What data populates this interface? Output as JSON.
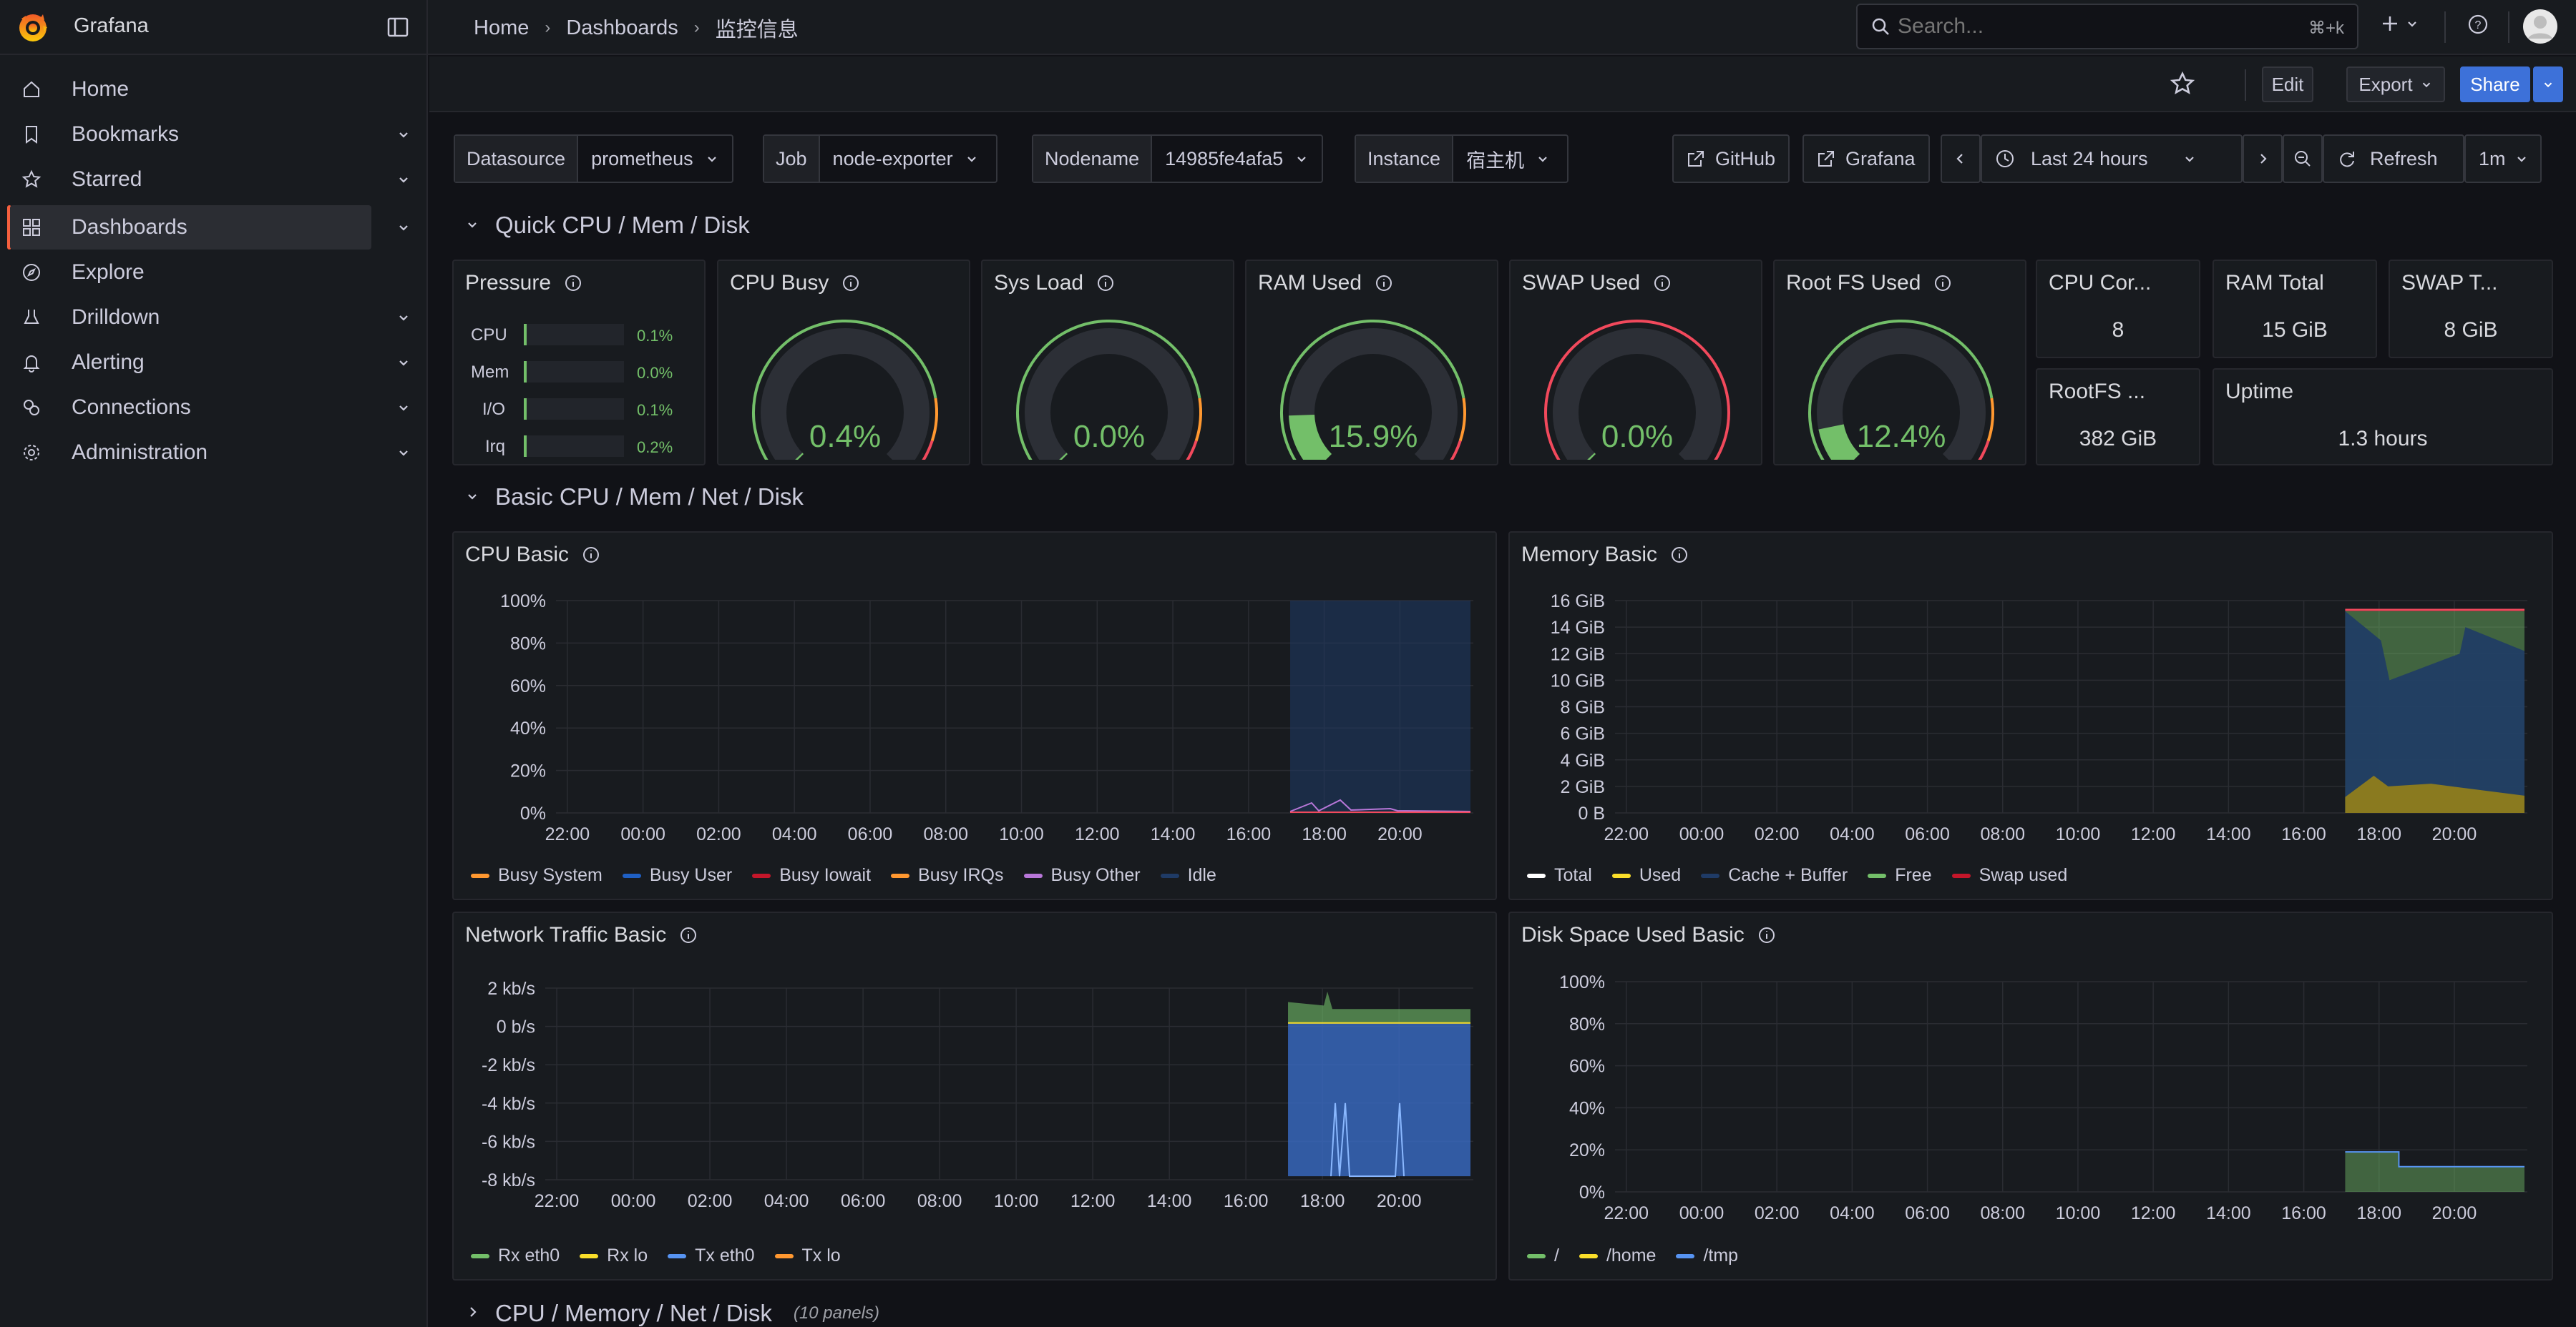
{
  "app": {
    "name": "Grafana"
  },
  "breadcrumb": [
    "Home",
    "Dashboards",
    "监控信息"
  ],
  "search": {
    "placeholder": "Search...",
    "shortcut": "⌘+k"
  },
  "sidebar": {
    "items": [
      {
        "label": "Home",
        "icon": "home-icon",
        "chev": false
      },
      {
        "label": "Bookmarks",
        "icon": "bookmark-icon",
        "chev": true
      },
      {
        "label": "Starred",
        "icon": "star-icon",
        "chev": true
      },
      {
        "label": "Dashboards",
        "icon": "dashboards-icon",
        "chev": true,
        "active": true
      },
      {
        "label": "Explore",
        "icon": "compass-icon",
        "chev": false
      },
      {
        "label": "Drilldown",
        "icon": "drilldown-icon",
        "chev": true
      },
      {
        "label": "Alerting",
        "icon": "bell-icon",
        "chev": true
      },
      {
        "label": "Connections",
        "icon": "connections-icon",
        "chev": true
      },
      {
        "label": "Administration",
        "icon": "gear-icon",
        "chev": true
      }
    ]
  },
  "toolbar": {
    "edit": "Edit",
    "export": "Export",
    "share": "Share"
  },
  "variables": [
    {
      "label": "Datasource",
      "value": "prometheus"
    },
    {
      "label": "Job",
      "value": "node-exporter"
    },
    {
      "label": "Nodename",
      "value": "14985fe4afa5"
    },
    {
      "label": "Instance",
      "value": "宿主机"
    }
  ],
  "links": {
    "github": "GitHub",
    "grafana": "Grafana"
  },
  "time": {
    "range": "Last 24 hours",
    "refresh": "Refresh",
    "interval": "1m"
  },
  "rows": {
    "quick": "Quick CPU / Mem / Disk",
    "basic": "Basic CPU / Mem / Net / Disk",
    "collapsed": "CPU / Memory / Net / Disk",
    "collapsed_count": "(10 panels)"
  },
  "pressure": {
    "title": "Pressure",
    "items": [
      {
        "label": "CPU",
        "value": "0.1%",
        "fill": 0.01
      },
      {
        "label": "Mem",
        "value": "0.0%",
        "fill": 0.0
      },
      {
        "label": "I/O",
        "value": "0.1%",
        "fill": 0.01
      },
      {
        "label": "Irq",
        "value": "0.2%",
        "fill": 0.02
      }
    ]
  },
  "gauges": [
    {
      "title": "CPU Busy",
      "value": "0.4%",
      "v": 0.4,
      "threshold": "green"
    },
    {
      "title": "Sys Load",
      "value": "0.0%",
      "v": 0.0,
      "threshold": "green"
    },
    {
      "title": "RAM Used",
      "value": "15.9%",
      "v": 15.9,
      "threshold": "green"
    },
    {
      "title": "SWAP Used",
      "value": "0.0%",
      "v": 0.0,
      "threshold": "red"
    },
    {
      "title": "Root FS Used",
      "value": "12.4%",
      "v": 12.4,
      "threshold": "green"
    }
  ],
  "stats": [
    {
      "title": "CPU Cor...",
      "value": "8"
    },
    {
      "title": "RAM Total",
      "value": "15 GiB"
    },
    {
      "title": "SWAP T...",
      "value": "8 GiB"
    },
    {
      "title": "RootFS ...",
      "value": "382 GiB"
    },
    {
      "title": "Uptime",
      "value": "1.3 hours"
    }
  ],
  "colors": {
    "green": "#73bf69",
    "yellow": "#fade2a",
    "orange": "#ff9830",
    "red": "#f2495c",
    "blue": "#5794f2",
    "darkblue": "#1f60c4",
    "purple": "#b877d9",
    "accent": "#3d71d9"
  },
  "xticks": [
    "22:00",
    "00:00",
    "02:00",
    "04:00",
    "06:00",
    "08:00",
    "10:00",
    "12:00",
    "14:00",
    "16:00",
    "18:00",
    "20:00"
  ],
  "chart_data": [
    {
      "type": "area",
      "title": "CPU Basic",
      "yticks": [
        "100%",
        "80%",
        "60%",
        "40%",
        "20%",
        "0%"
      ],
      "ylim": [
        0,
        100
      ],
      "series": [
        {
          "name": "Busy System",
          "color": "#ff9830"
        },
        {
          "name": "Busy User",
          "color": "#1f60c4"
        },
        {
          "name": "Busy Iowait",
          "color": "#c4162a"
        },
        {
          "name": "Busy IRQs",
          "color": "#ff9830"
        },
        {
          "name": "Busy Other",
          "color": "#b877d9"
        },
        {
          "name": "Idle",
          "color": "#1f3b66"
        }
      ]
    },
    {
      "type": "area",
      "title": "Memory Basic",
      "yticks": [
        "16 GiB",
        "14 GiB",
        "12 GiB",
        "10 GiB",
        "8 GiB",
        "6 GiB",
        "4 GiB",
        "2 GiB",
        "0 B"
      ],
      "ylim": [
        0,
        16
      ],
      "series": [
        {
          "name": "Total",
          "color": "#ffffff"
        },
        {
          "name": "Used",
          "color": "#fade2a"
        },
        {
          "name": "Cache + Buffer",
          "color": "#1f3b66"
        },
        {
          "name": "Free",
          "color": "#73bf69"
        },
        {
          "name": "Swap used",
          "color": "#c4162a"
        }
      ]
    },
    {
      "type": "area",
      "title": "Network Traffic Basic",
      "yticks": [
        "2 kb/s",
        "0 b/s",
        "-2 kb/s",
        "-4 kb/s",
        "-6 kb/s",
        "-8 kb/s"
      ],
      "ylim": [
        -9,
        2
      ],
      "series": [
        {
          "name": "Rx eth0",
          "color": "#73bf69"
        },
        {
          "name": "Rx lo",
          "color": "#fade2a"
        },
        {
          "name": "Tx eth0",
          "color": "#5794f2"
        },
        {
          "name": "Tx lo",
          "color": "#ff9830"
        }
      ]
    },
    {
      "type": "area",
      "title": "Disk Space Used Basic",
      "yticks": [
        "100%",
        "80%",
        "60%",
        "40%",
        "20%",
        "0%"
      ],
      "ylim": [
        0,
        100
      ],
      "series": [
        {
          "name": "/",
          "color": "#73bf69"
        },
        {
          "name": "/home",
          "color": "#fade2a"
        },
        {
          "name": "/tmp",
          "color": "#5794f2"
        }
      ]
    }
  ]
}
